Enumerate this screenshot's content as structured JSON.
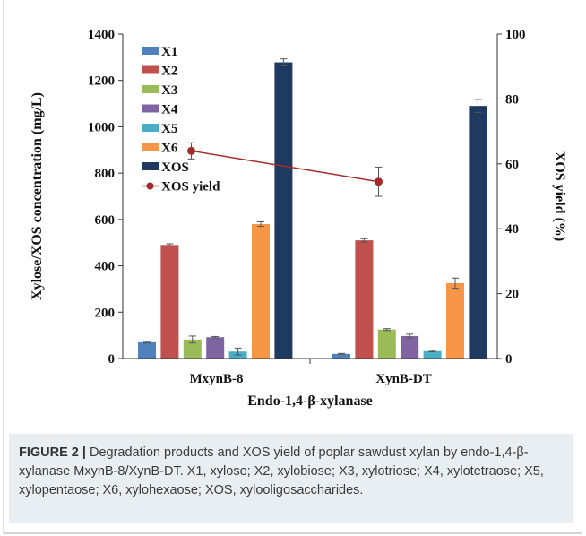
{
  "chart_data": {
    "type": "bar",
    "categories": [
      "MxynB-8",
      "XynB-DT"
    ],
    "xlabel": "Endo-1,4-β-xylanase",
    "ylabel": "Xylose/XOS concentration (mg/L)",
    "y2label": "XOS yield (%)",
    "ylim": [
      0,
      1400
    ],
    "yticks": [
      "0",
      "200",
      "400",
      "600",
      "800",
      "1000",
      "1200",
      "1400"
    ],
    "y2lim": [
      0,
      100
    ],
    "y2ticks": [
      "0",
      "20",
      "40",
      "60",
      "80",
      "100"
    ],
    "legend_position": "top-left",
    "series": [
      {
        "name": "X1",
        "color": "#4f81bd",
        "values": [
          70,
          20
        ],
        "errors": [
          3,
          2
        ]
      },
      {
        "name": "X2",
        "color": "#c0504d",
        "values": [
          490,
          510
        ],
        "errors": [
          5,
          7
        ]
      },
      {
        "name": "X3",
        "color": "#9bbb59",
        "values": [
          82,
          125
        ],
        "errors": [
          15,
          4
        ]
      },
      {
        "name": "X4",
        "color": "#8064a2",
        "values": [
          92,
          97
        ],
        "errors": [
          3,
          8
        ]
      },
      {
        "name": "X5",
        "color": "#4bacc6",
        "values": [
          30,
          32
        ],
        "errors": [
          15,
          3
        ]
      },
      {
        "name": "X6",
        "color": "#f79646",
        "values": [
          580,
          325
        ],
        "errors": [
          10,
          22
        ]
      },
      {
        "name": "XOS",
        "color": "#1f3a60",
        "values": [
          1278,
          1090
        ],
        "errors": [
          15,
          28
        ]
      }
    ],
    "line_series": {
      "name": "XOS yield",
      "color": "#a52a2a",
      "values": [
        64,
        54.5
      ],
      "errors": [
        2.5,
        4.5
      ],
      "axis": "right"
    }
  },
  "caption": {
    "label": "FIGURE 2 |",
    "text": " Degradation products and XOS yield of poplar sawdust xylan by endo-1,4-β-xylanase MxynB-8/XynB-DT. X1, xylose; X2, xylobiose; X3, xylotriose; X4, xylotetraose; X5, xylopentaose; X6, xylohexaose; XOS, xylooligosaccharides."
  }
}
